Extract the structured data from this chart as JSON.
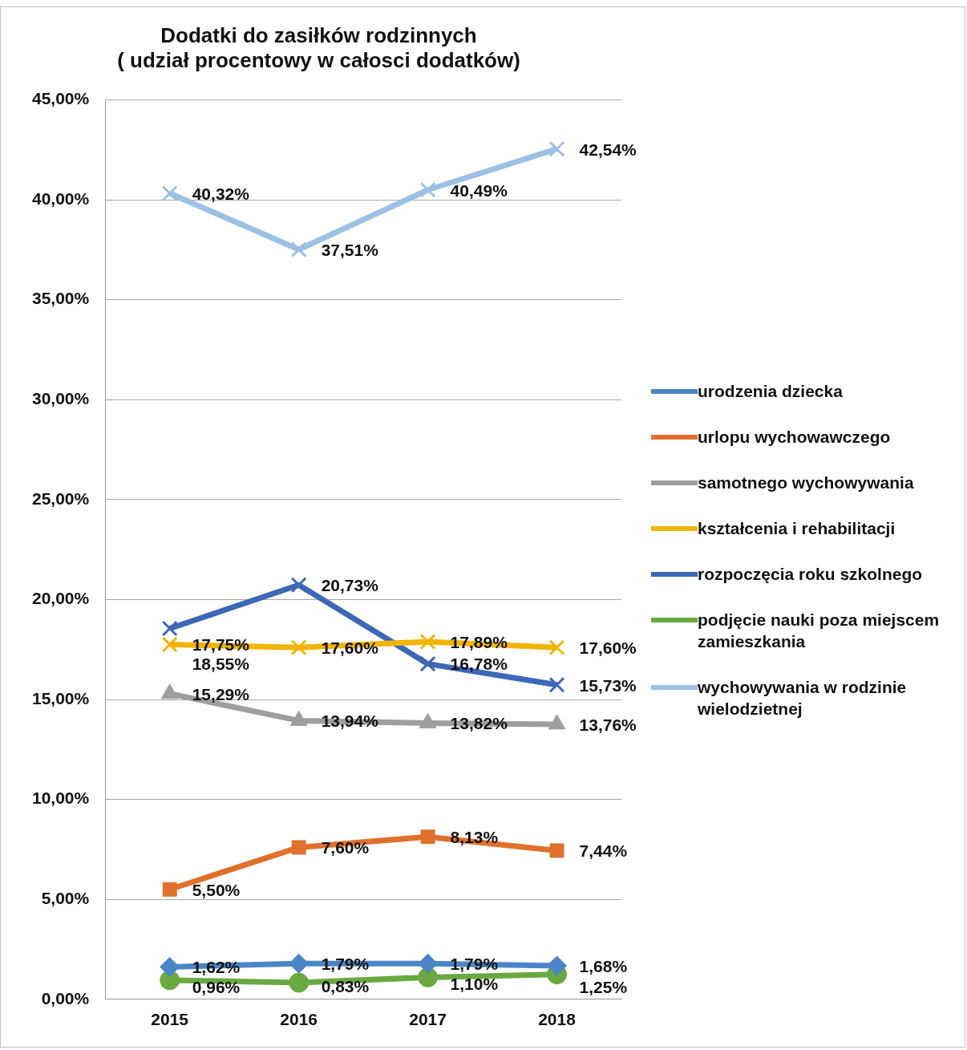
{
  "chart_data": {
    "type": "line",
    "title": "Dodatki do zasiłków rodzinnych\n( udział procentowy w całosci dodatków)",
    "categories": [
      "2015",
      "2016",
      "2017",
      "2018"
    ],
    "ylim": [
      0,
      45
    ],
    "yticks": [
      {
        "value": 0,
        "label": "0,00%"
      },
      {
        "value": 5,
        "label": "5,00%"
      },
      {
        "value": 10,
        "label": "10,00%"
      },
      {
        "value": 15,
        "label": "15,00%"
      },
      {
        "value": 20,
        "label": "20,00%"
      },
      {
        "value": 25,
        "label": "25,00%"
      },
      {
        "value": 30,
        "label": "30,00%"
      },
      {
        "value": 35,
        "label": "35,00%"
      },
      {
        "value": 40,
        "label": "40,00%"
      },
      {
        "value": 45,
        "label": "45,00%"
      }
    ],
    "grid": "y",
    "legend": "right",
    "series": [
      {
        "name": "urodzenia dziecka",
        "color": "#4a86c5",
        "marker": "diamond",
        "values": [
          1.62,
          1.79,
          1.79,
          1.68
        ],
        "value_labels": [
          "1,62%",
          "1,79%",
          "1,79%",
          "1,68%"
        ]
      },
      {
        "name": "urlopu wychowawczego",
        "color": "#e0712c",
        "marker": "square",
        "values": [
          5.5,
          7.6,
          8.13,
          7.44
        ],
        "value_labels": [
          "5,50%",
          "7,60%",
          "8,13%",
          "7,44%"
        ]
      },
      {
        "name": "samotnego wychowywania",
        "color": "#9e9e9e",
        "marker": "triangle",
        "values": [
          15.29,
          13.94,
          13.82,
          13.76
        ],
        "value_labels": [
          "15,29%",
          "13,94%",
          "13,82%",
          "13,76%"
        ]
      },
      {
        "name": "kształcenia i rehabilitacji",
        "color": "#f1b400",
        "marker": "cross",
        "values": [
          17.75,
          17.6,
          17.89,
          17.6
        ],
        "value_labels": [
          "17,75%",
          "17,60%",
          "17,89%",
          "17,60%"
        ]
      },
      {
        "name": "rozpoczęcia roku szkolnego",
        "color": "#3c68b6",
        "marker": "cross",
        "values": [
          18.55,
          20.73,
          16.78,
          15.73
        ],
        "value_labels": [
          "18,55%",
          "20,73%",
          "16,78%",
          "15,73%"
        ]
      },
      {
        "name": "podjęcie nauki poza miejscem zamieszkania",
        "color": "#6aa842",
        "marker": "circle",
        "values": [
          0.96,
          0.83,
          1.1,
          1.25
        ],
        "value_labels": [
          "0,96%",
          "0,83%",
          "1,10%",
          "1,25%"
        ]
      },
      {
        "name": "wychowywania w rodzinie wielodzietnej",
        "color": "#9dc0e5",
        "marker": "cross",
        "values": [
          40.32,
          37.51,
          40.49,
          42.54
        ],
        "value_labels": [
          "40,32%",
          "37,51%",
          "40,49%",
          "42,54%"
        ]
      }
    ]
  }
}
